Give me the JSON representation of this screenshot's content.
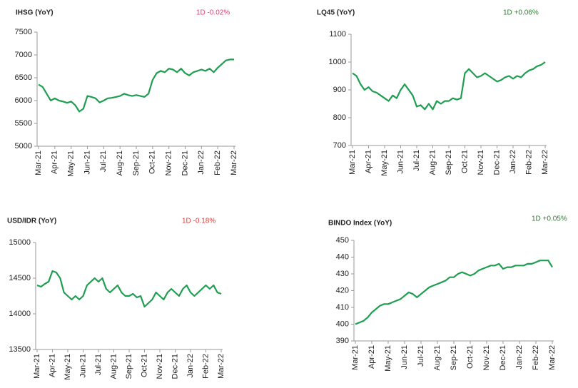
{
  "chart_data": [
    {
      "type": "line",
      "title": "IHSG (YoY)",
      "annotation": "1D -0.02%",
      "annotation_color": "#e0407a",
      "color": "#1e9e50",
      "categories": [
        "Mar-21",
        null,
        null,
        null,
        "Apr-21",
        null,
        null,
        null,
        "May-21",
        null,
        null,
        null,
        "Jun-21",
        null,
        null,
        null,
        "Jul-21",
        null,
        null,
        null,
        "Aug-21",
        null,
        null,
        null,
        "Sep-21",
        null,
        null,
        null,
        "Oct-21",
        null,
        null,
        null,
        "Nov-21",
        null,
        null,
        null,
        "Dec-21",
        null,
        null,
        null,
        "Jan-22",
        null,
        null,
        null,
        "Feb-22",
        null,
        null,
        null,
        "Mar-22"
      ],
      "values": [
        6350,
        6300,
        6150,
        6000,
        6050,
        6000,
        5980,
        5950,
        5980,
        5900,
        5760,
        5820,
        6100,
        6080,
        6050,
        5960,
        6000,
        6050,
        6060,
        6080,
        6100,
        6150,
        6120,
        6100,
        6120,
        6100,
        6080,
        6150,
        6450,
        6600,
        6650,
        6620,
        6700,
        6680,
        6620,
        6700,
        6600,
        6550,
        6620,
        6650,
        6680,
        6650,
        6700,
        6620,
        6720,
        6800,
        6880,
        6900,
        6900
      ],
      "ylim": [
        5000,
        7500
      ],
      "yticks": [
        5000,
        5500,
        6000,
        6500,
        7000,
        7500
      ]
    },
    {
      "type": "line",
      "title": "LQ45 (YoY)",
      "annotation": "1D +0.06%",
      "annotation_color": "#2e7d32",
      "color": "#1e9e50",
      "categories": [
        "Mar-21",
        null,
        null,
        null,
        "Apr-21",
        null,
        null,
        null,
        "May-21",
        null,
        null,
        null,
        "Jun-21",
        null,
        null,
        null,
        "Jul-21",
        null,
        null,
        null,
        "Aug-21",
        null,
        null,
        null,
        "Sep-21",
        null,
        null,
        null,
        "Oct-21",
        null,
        null,
        null,
        "Nov-21",
        null,
        null,
        null,
        "Dec-21",
        null,
        null,
        null,
        "Jan-22",
        null,
        null,
        null,
        "Feb-22",
        null,
        null,
        null,
        "Mar-22"
      ],
      "values": [
        960,
        950,
        920,
        900,
        910,
        895,
        890,
        880,
        870,
        860,
        880,
        870,
        900,
        920,
        900,
        880,
        840,
        845,
        830,
        850,
        830,
        860,
        850,
        860,
        860,
        870,
        865,
        870,
        960,
        975,
        960,
        945,
        950,
        960,
        950,
        940,
        930,
        935,
        945,
        950,
        940,
        950,
        945,
        960,
        970,
        975,
        985,
        990,
        1000
      ],
      "ylim": [
        700,
        1100
      ],
      "yticks": [
        700,
        800,
        900,
        1000,
        1100
      ]
    },
    {
      "type": "line",
      "title": "USD/IDR  (YoY)",
      "annotation": "1D -0.18%",
      "annotation_color": "#e53935",
      "color": "#1e9e50",
      "categories": [
        "Mar-21",
        null,
        null,
        null,
        "Apr-21",
        null,
        null,
        null,
        "May-21",
        null,
        null,
        null,
        "Jun-21",
        null,
        null,
        null,
        "Jul-21",
        null,
        null,
        null,
        "Aug-21",
        null,
        null,
        null,
        "Sep-21",
        null,
        null,
        null,
        "Oct-21",
        null,
        null,
        null,
        "Nov-21",
        null,
        null,
        null,
        "Dec-21",
        null,
        null,
        null,
        "Jan-22",
        null,
        null,
        null,
        "Feb-22",
        null,
        null,
        null,
        "Mar-22"
      ],
      "values": [
        14400,
        14380,
        14420,
        14450,
        14600,
        14580,
        14500,
        14300,
        14250,
        14200,
        14250,
        14200,
        14250,
        14400,
        14450,
        14500,
        14450,
        14500,
        14350,
        14300,
        14350,
        14400,
        14300,
        14250,
        14250,
        14280,
        14230,
        14250,
        14100,
        14150,
        14200,
        14300,
        14250,
        14200,
        14300,
        14350,
        14300,
        14250,
        14350,
        14400,
        14300,
        14250,
        14300,
        14350,
        14400,
        14350,
        14400,
        14300,
        14280
      ],
      "ylim": [
        13500,
        15000
      ],
      "yticks": [
        13500,
        14000,
        14500,
        15000
      ]
    },
    {
      "type": "line",
      "title": "BINDO Index (YoY)",
      "annotation": "1D +0.05%",
      "annotation_color": "#2e7d32",
      "color": "#1e9e50",
      "categories": [
        "Mar-21",
        null,
        null,
        null,
        "Apr-21",
        null,
        null,
        null,
        "May-21",
        null,
        null,
        null,
        "Jun-21",
        null,
        null,
        null,
        "Jul-21",
        null,
        null,
        null,
        "Aug-21",
        null,
        null,
        null,
        "Sep-21",
        null,
        null,
        null,
        "Oct-21",
        null,
        null,
        null,
        "Nov-21",
        null,
        null,
        null,
        "Dec-21",
        null,
        null,
        null,
        "Jan-22",
        null,
        null,
        null,
        "Feb-22",
        null,
        null,
        null,
        "Mar-22"
      ],
      "values": [
        400,
        401,
        402,
        404,
        407,
        409,
        411,
        412,
        412,
        413,
        414,
        415,
        417,
        419,
        418,
        416,
        418,
        420,
        422,
        423,
        424,
        425,
        426,
        428,
        428,
        430,
        431,
        430,
        429,
        430,
        432,
        433,
        434,
        435,
        435,
        436,
        433,
        434,
        434,
        435,
        435,
        435,
        436,
        436,
        437,
        438,
        438,
        438,
        434
      ],
      "ylim": [
        390,
        450
      ],
      "yticks": [
        390,
        400,
        410,
        420,
        430,
        440,
        450
      ]
    }
  ]
}
